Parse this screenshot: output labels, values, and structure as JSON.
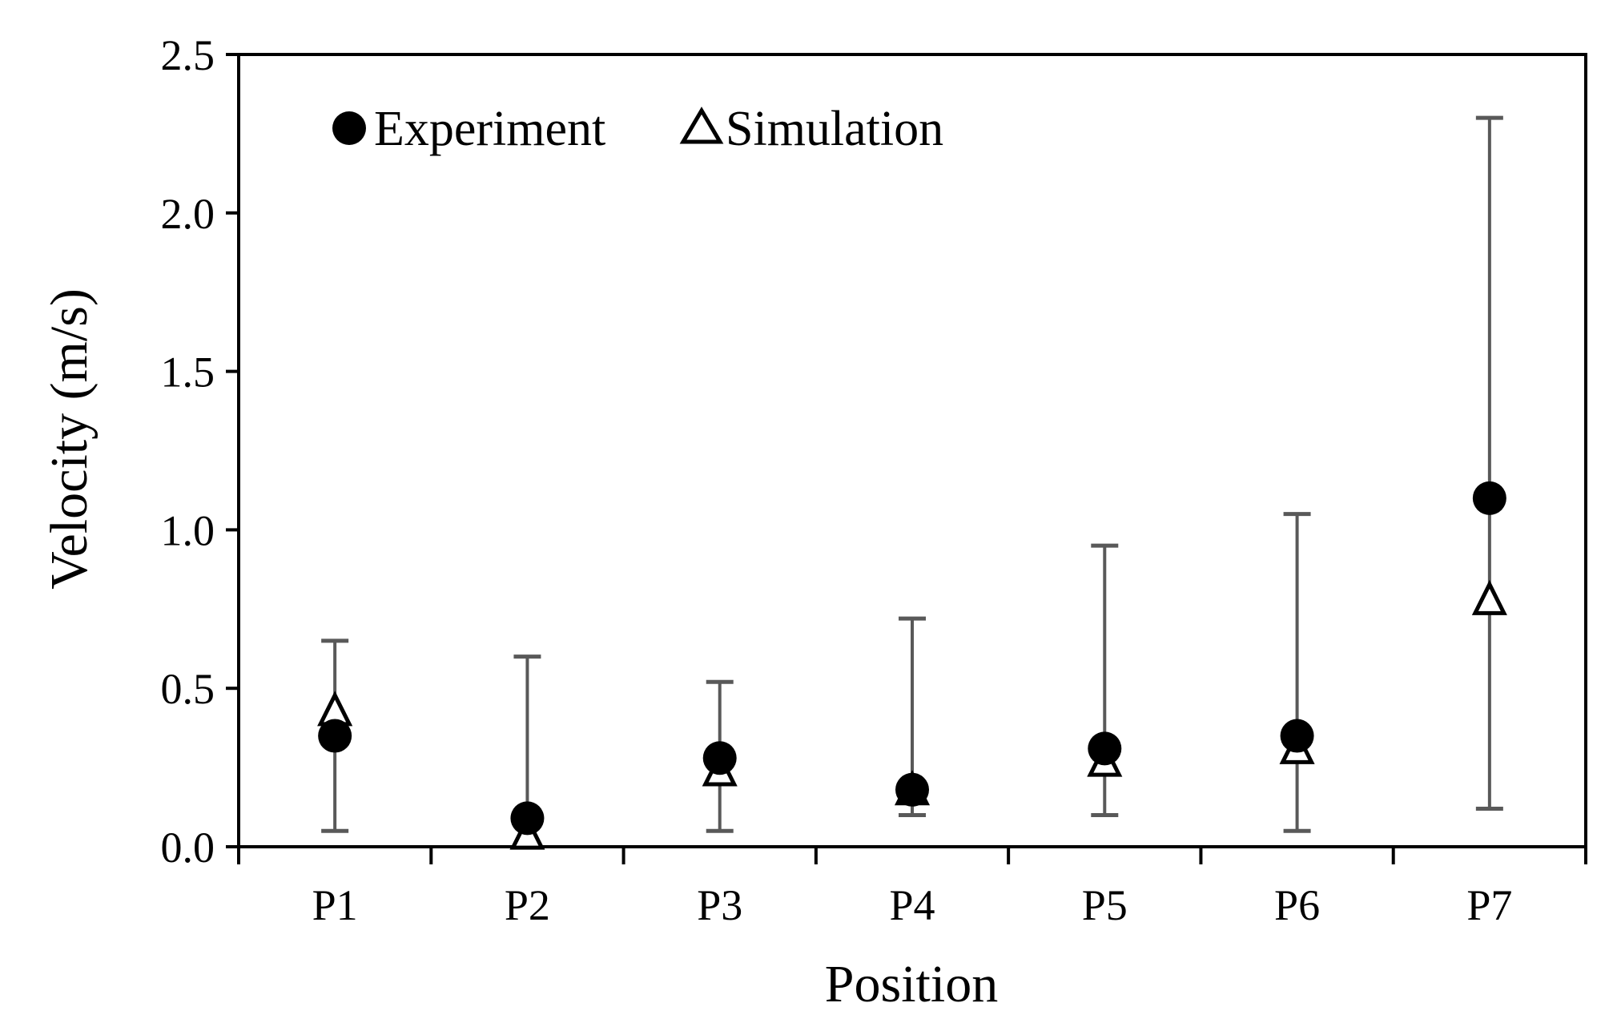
{
  "chart_data": {
    "type": "scatter",
    "title": "",
    "xlabel": "Position",
    "ylabel": "Velocity (m/s)",
    "categories": [
      "P1",
      "P2",
      "P3",
      "P4",
      "P5",
      "P6",
      "P7"
    ],
    "ylim": [
      0.0,
      2.5
    ],
    "yticks": [
      0.0,
      0.5,
      1.0,
      1.5,
      2.0,
      2.5
    ],
    "ytick_labels": [
      "0.0",
      "0.5",
      "1.0",
      "1.5",
      "2.0",
      "2.5"
    ],
    "grid": false,
    "legend_position": "top-left",
    "series": [
      {
        "name": "Experiment",
        "marker": "filled-circle",
        "color": "#000000",
        "values": [
          0.35,
          0.09,
          0.28,
          0.18,
          0.31,
          0.35,
          1.1
        ],
        "error_low": [
          0.05,
          0.0,
          0.05,
          0.1,
          0.1,
          0.05,
          0.12
        ],
        "error_high": [
          0.65,
          0.6,
          0.52,
          0.72,
          0.95,
          1.05,
          2.3
        ]
      },
      {
        "name": "Simulation",
        "marker": "open-triangle",
        "color": "#000000",
        "values": [
          0.42,
          0.03,
          0.23,
          0.17,
          0.26,
          0.3,
          0.77
        ]
      }
    ],
    "errorbar_color": "#595959",
    "axis_color": "#000000"
  }
}
